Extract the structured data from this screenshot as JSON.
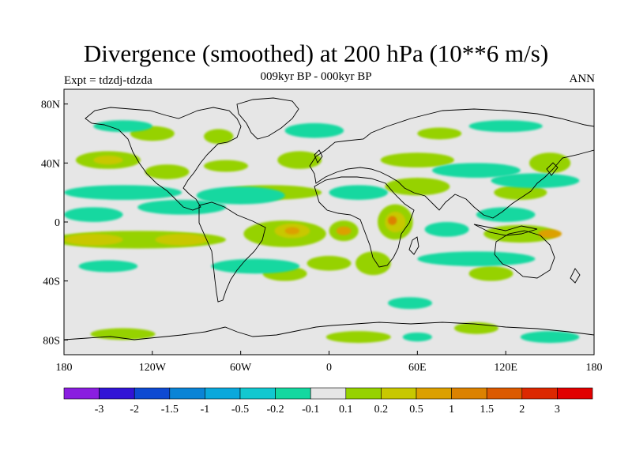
{
  "title": "Divergence (smoothed) at 200 hPa (10**6 m/s)",
  "subtitle": "009kyr BP - 000kyr BP",
  "left_label": "Expt = tdzdj-tdzda",
  "right_label": "ANN",
  "map": {
    "projection": "cylindrical-equidistant",
    "lon_range": [
      -180,
      180
    ],
    "lat_range": [
      -90,
      90
    ],
    "lat_ticks": [
      {
        "value": 80,
        "label": "80N"
      },
      {
        "value": 40,
        "label": "40N"
      },
      {
        "value": 0,
        "label": "0"
      },
      {
        "value": -40,
        "label": "40S"
      },
      {
        "value": -80,
        "label": "80S"
      }
    ],
    "lon_ticks": [
      {
        "value": -180,
        "label": "180"
      },
      {
        "value": -120,
        "label": "120W"
      },
      {
        "value": -60,
        "label": "60W"
      },
      {
        "value": 0,
        "label": "0"
      },
      {
        "value": 60,
        "label": "60E"
      },
      {
        "value": 120,
        "label": "120E"
      },
      {
        "value": 180,
        "label": "180"
      }
    ],
    "background_color": "#e6e6e6",
    "coast_color": "#000000"
  },
  "colorbar": {
    "colors": [
      "#8a1ee0",
      "#3214d6",
      "#0e4ad2",
      "#0a84d6",
      "#0aa8dc",
      "#12c8d0",
      "#14d8a0",
      "#e6e6e6",
      "#96d200",
      "#c8c800",
      "#dca000",
      "#dc8200",
      "#dc5a00",
      "#dc2800",
      "#e10000"
    ],
    "labels": [
      "-3",
      "-2",
      "-1.5",
      "-1",
      "-0.5",
      "-0.2",
      "-0.1",
      "0.1",
      "0.2",
      "0.5",
      "1",
      "1.5",
      "2",
      "3"
    ]
  },
  "field_patches": [
    {
      "lon": -150,
      "lat": 42,
      "rx": 22,
      "ry": 6,
      "level": 1
    },
    {
      "lon": -150,
      "lat": 42,
      "rx": 10,
      "ry": 3,
      "level": 2
    },
    {
      "lon": -110,
      "lat": 34,
      "rx": 15,
      "ry": 5,
      "level": 1
    },
    {
      "lon": -70,
      "lat": 38,
      "rx": 15,
      "ry": 4,
      "level": 1
    },
    {
      "lon": -20,
      "lat": 42,
      "rx": 15,
      "ry": 6,
      "level": 1
    },
    {
      "lon": 60,
      "lat": 42,
      "rx": 25,
      "ry": 5,
      "level": 1
    },
    {
      "lon": 150,
      "lat": 40,
      "rx": 14,
      "ry": 7,
      "level": 1
    },
    {
      "lon": 60,
      "lat": 24,
      "rx": 22,
      "ry": 6,
      "level": 1
    },
    {
      "lon": -40,
      "lat": 20,
      "rx": 35,
      "ry": 5,
      "level": 1
    },
    {
      "lon": 130,
      "lat": 20,
      "rx": 18,
      "ry": 5,
      "level": 1
    },
    {
      "lon": -130,
      "lat": -12,
      "rx": 60,
      "ry": 6,
      "level": 1
    },
    {
      "lon": -160,
      "lat": -12,
      "rx": 20,
      "ry": 4,
      "level": 2
    },
    {
      "lon": -100,
      "lat": -12,
      "rx": 18,
      "ry": 4,
      "level": 2
    },
    {
      "lon": -30,
      "lat": -8,
      "rx": 28,
      "ry": 9,
      "level": 1
    },
    {
      "lon": -25,
      "lat": -6,
      "rx": 12,
      "ry": 5,
      "level": 2
    },
    {
      "lon": -25,
      "lat": -6,
      "rx": 5,
      "ry": 2.5,
      "level": 3
    },
    {
      "lon": 10,
      "lat": -6,
      "rx": 10,
      "ry": 7,
      "level": 1
    },
    {
      "lon": 10,
      "lat": -6,
      "rx": 5,
      "ry": 3,
      "level": 3
    },
    {
      "lon": 45,
      "lat": 0,
      "rx": 12,
      "ry": 12,
      "level": 1
    },
    {
      "lon": 45,
      "lat": 0,
      "rx": 7,
      "ry": 7,
      "level": 2
    },
    {
      "lon": 43,
      "lat": 1,
      "rx": 3,
      "ry": 3,
      "level": 4
    },
    {
      "lon": 130,
      "lat": -8,
      "rx": 25,
      "ry": 6,
      "level": 1
    },
    {
      "lon": 150,
      "lat": -8,
      "rx": 8,
      "ry": 3,
      "level": 3
    },
    {
      "lon": 0,
      "lat": -28,
      "rx": 15,
      "ry": 5,
      "level": 1
    },
    {
      "lon": 110,
      "lat": -35,
      "rx": 15,
      "ry": 5,
      "level": 1
    },
    {
      "lon": -30,
      "lat": -35,
      "rx": 15,
      "ry": 5,
      "level": 1
    },
    {
      "lon": 30,
      "lat": -28,
      "rx": 12,
      "ry": 8,
      "level": 1
    },
    {
      "lon": -140,
      "lat": -76,
      "rx": 22,
      "ry": 4,
      "level": 1
    },
    {
      "lon": 20,
      "lat": -78,
      "rx": 22,
      "ry": 4,
      "level": 1
    },
    {
      "lon": 100,
      "lat": -72,
      "rx": 15,
      "ry": 4,
      "level": 1
    },
    {
      "lon": -120,
      "lat": 60,
      "rx": 15,
      "ry": 5,
      "level": 1
    },
    {
      "lon": -75,
      "lat": 58,
      "rx": 10,
      "ry": 5,
      "level": 1
    },
    {
      "lon": 75,
      "lat": 60,
      "rx": 15,
      "ry": 4,
      "level": 1
    },
    {
      "lon": -140,
      "lat": 20,
      "rx": 40,
      "ry": 5,
      "level": -1
    },
    {
      "lon": -160,
      "lat": 5,
      "rx": 20,
      "ry": 5,
      "level": -1
    },
    {
      "lon": -100,
      "lat": 10,
      "rx": 30,
      "ry": 5,
      "level": -1
    },
    {
      "lon": -60,
      "lat": 18,
      "rx": 30,
      "ry": 6,
      "level": -1
    },
    {
      "lon": 20,
      "lat": 20,
      "rx": 20,
      "ry": 5,
      "level": -1
    },
    {
      "lon": 100,
      "lat": 35,
      "rx": 30,
      "ry": 5,
      "level": -1
    },
    {
      "lon": 140,
      "lat": 28,
      "rx": 30,
      "ry": 5,
      "level": -1
    },
    {
      "lon": 120,
      "lat": 5,
      "rx": 20,
      "ry": 5,
      "level": -1
    },
    {
      "lon": 80,
      "lat": -5,
      "rx": 15,
      "ry": 5,
      "level": -1
    },
    {
      "lon": 100,
      "lat": -25,
      "rx": 40,
      "ry": 5,
      "level": -1
    },
    {
      "lon": -150,
      "lat": -30,
      "rx": 20,
      "ry": 4,
      "level": -1
    },
    {
      "lon": -50,
      "lat": -30,
      "rx": 30,
      "ry": 5,
      "level": -1
    },
    {
      "lon": 55,
      "lat": -55,
      "rx": 15,
      "ry": 4,
      "level": -1
    },
    {
      "lon": -140,
      "lat": 65,
      "rx": 20,
      "ry": 4,
      "level": -1
    },
    {
      "lon": -10,
      "lat": 62,
      "rx": 20,
      "ry": 5,
      "level": -1
    },
    {
      "lon": 120,
      "lat": 65,
      "rx": 25,
      "ry": 4,
      "level": -1
    },
    {
      "lon": 150,
      "lat": -78,
      "rx": 20,
      "ry": 4,
      "level": -1
    },
    {
      "lon": 60,
      "lat": -78,
      "rx": 10,
      "ry": 3,
      "level": -1
    }
  ]
}
